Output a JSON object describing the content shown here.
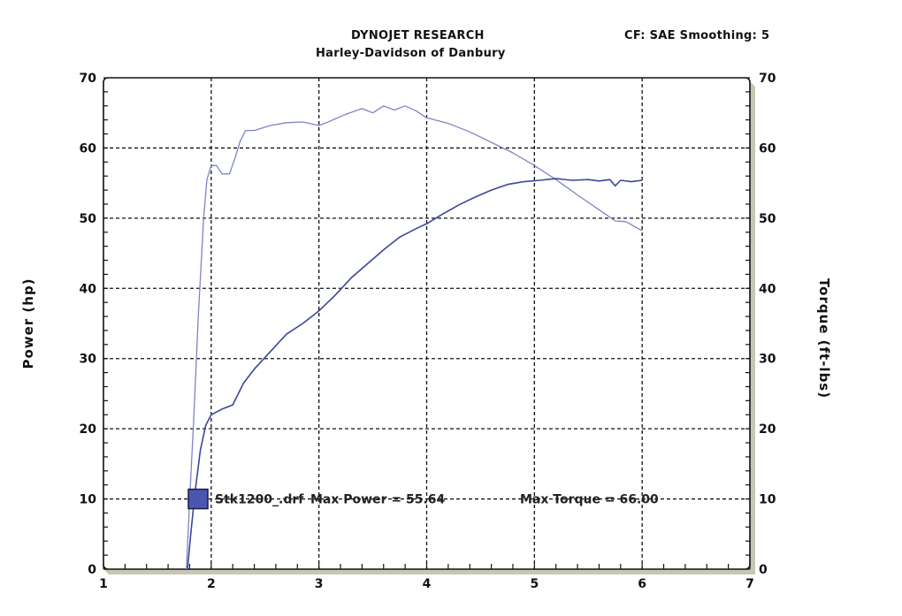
{
  "header": {
    "title": "DYNOJET RESEARCH",
    "subtitle": "Harley-Davidson of Danbury",
    "correction_info": "CF: SAE  Smoothing: 5"
  },
  "axes": {
    "left_label": "Power (hp)",
    "right_label": "Torque (ft-lbs)"
  },
  "legend": {
    "run_name": "Stk1200_.drf",
    "max_power_text": "Max Power = 55.64",
    "max_torque_text": "Max Torque = 66.00",
    "swatch_color": "#4a57b0"
  },
  "colors": {
    "frame_shadow": "#c8c6b4",
    "power_line": "#3a479a",
    "torque_line": "#7d84c4",
    "grid": "#111111"
  },
  "chart_data": {
    "type": "line",
    "title": "DYNOJET RESEARCH",
    "subtitle": "Harley-Davidson of Danbury",
    "annotation": "CF: SAE  Smoothing: 5",
    "xlabel": "",
    "ylabel": "Power (hp)",
    "y2label": "Torque (ft-lbs)",
    "xlim": [
      1,
      7
    ],
    "ylim": [
      0,
      70
    ],
    "y2lim": [
      0,
      70
    ],
    "x_ticks": [
      1,
      2,
      3,
      4,
      5,
      6,
      7
    ],
    "y_ticks": [
      0,
      10,
      20,
      30,
      40,
      50,
      60,
      70
    ],
    "y2_ticks": [
      0,
      10,
      20,
      30,
      40,
      50,
      60,
      70
    ],
    "grid": true,
    "legend_position": "inside-bottom-left",
    "series": [
      {
        "name": "Torque (ft-lbs)",
        "axis": "right",
        "x": [
          1.77,
          1.8,
          1.84,
          1.88,
          1.93,
          1.96,
          2.0,
          2.05,
          2.1,
          2.17,
          2.22,
          2.27,
          2.32,
          2.4,
          2.55,
          2.7,
          2.85,
          3.0,
          3.1,
          3.25,
          3.4,
          3.5,
          3.6,
          3.7,
          3.8,
          3.9,
          4.0,
          4.2,
          4.4,
          4.6,
          4.8,
          5.0,
          5.2,
          5.4,
          5.6,
          5.75,
          5.85,
          6.0
        ],
        "values": [
          0,
          10,
          22,
          36,
          50,
          55.5,
          57.5,
          57.5,
          56.3,
          56.3,
          58.5,
          61,
          62.5,
          62.5,
          63.2,
          63.6,
          63.7,
          63.2,
          63.8,
          64.8,
          65.6,
          65.0,
          66.0,
          65.4,
          66.0,
          65.3,
          64.3,
          63.5,
          62.3,
          60.8,
          59.3,
          57.5,
          55.5,
          53.3,
          51.2,
          49.6,
          49.5,
          48.2
        ]
      },
      {
        "name": "Power (hp)",
        "axis": "left",
        "x": [
          1.78,
          1.81,
          1.85,
          1.9,
          1.95,
          2.0,
          2.1,
          2.2,
          2.3,
          2.4,
          2.55,
          2.7,
          2.85,
          3.0,
          3.15,
          3.3,
          3.45,
          3.6,
          3.75,
          3.9,
          4.0,
          4.15,
          4.3,
          4.45,
          4.6,
          4.75,
          4.9,
          5.05,
          5.2,
          5.35,
          5.5,
          5.6,
          5.7,
          5.75,
          5.8,
          5.9,
          6.0
        ],
        "values": [
          0,
          5,
          11,
          17,
          20.5,
          22,
          22.8,
          23.4,
          26.5,
          28.5,
          31,
          33.5,
          35,
          36.8,
          39,
          41.5,
          43.5,
          45.5,
          47.3,
          48.5,
          49.2,
          50.6,
          51.9,
          53.0,
          54.0,
          54.8,
          55.2,
          55.4,
          55.64,
          55.4,
          55.5,
          55.3,
          55.5,
          54.6,
          55.4,
          55.2,
          55.4
        ]
      }
    ]
  }
}
